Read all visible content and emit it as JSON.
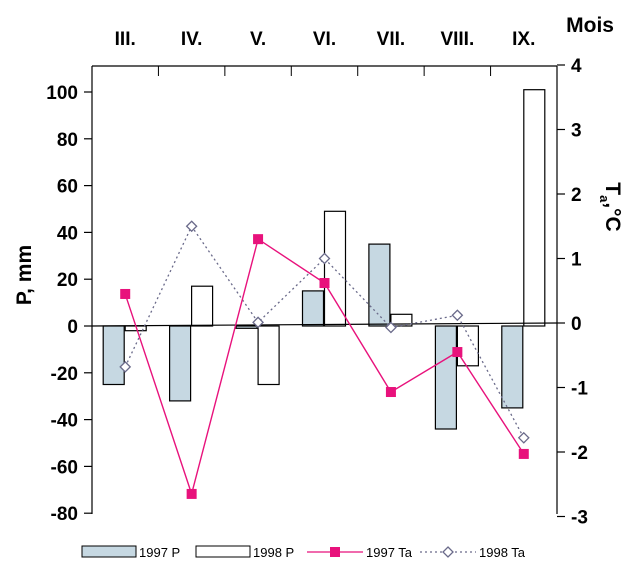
{
  "chart_data": {
    "type": "bar",
    "x_title": "Mois",
    "categories": [
      "III.",
      "IV.",
      "V.",
      "VI.",
      "VII.",
      "VIII.",
      "IX."
    ],
    "y_left": {
      "label": "P, mm",
      "range": [
        -80,
        110
      ],
      "ticks": [
        "100",
        "80",
        "60",
        "40",
        "20",
        "0",
        "-20",
        "-40",
        "-60",
        "-80"
      ],
      "tick_values": [
        100,
        80,
        60,
        40,
        20,
        0,
        -20,
        -40,
        -60,
        -80
      ]
    },
    "y_right": {
      "label_main": "T",
      "label_sub": "a",
      "label_unit": ",°C",
      "range": [
        -3,
        4
      ],
      "ticks": [
        "4",
        "3",
        "2",
        "1",
        "0",
        "-1",
        "-2",
        "-3"
      ],
      "tick_values": [
        4,
        3,
        2,
        1,
        0,
        -1,
        -2,
        -3
      ]
    },
    "series": [
      {
        "name": "1997 P",
        "type": "bar",
        "axis": "left",
        "color": "#c6d8e2",
        "values": [
          -25,
          -32,
          -1,
          15,
          35,
          -44,
          -35
        ]
      },
      {
        "name": "1998 P",
        "type": "bar",
        "axis": "left",
        "color": "#ffffff",
        "values": [
          -2,
          17,
          -25,
          49,
          5,
          -17,
          101
        ]
      },
      {
        "name": "1997 Ta",
        "type": "line",
        "axis": "right",
        "color": "#e8127c",
        "marker": "square",
        "values": [
          0.45,
          -2.65,
          1.3,
          0.62,
          -1.07,
          -0.45,
          -2.03
        ]
      },
      {
        "name": "1998 Ta",
        "type": "line",
        "axis": "right",
        "color": "#6a6a8a",
        "dash": "dotted",
        "marker": "diamond",
        "values": [
          -0.68,
          1.5,
          0.01,
          1.0,
          -0.07,
          0.12,
          -1.78
        ]
      }
    ],
    "legend_position": "bottom",
    "grid": false
  }
}
